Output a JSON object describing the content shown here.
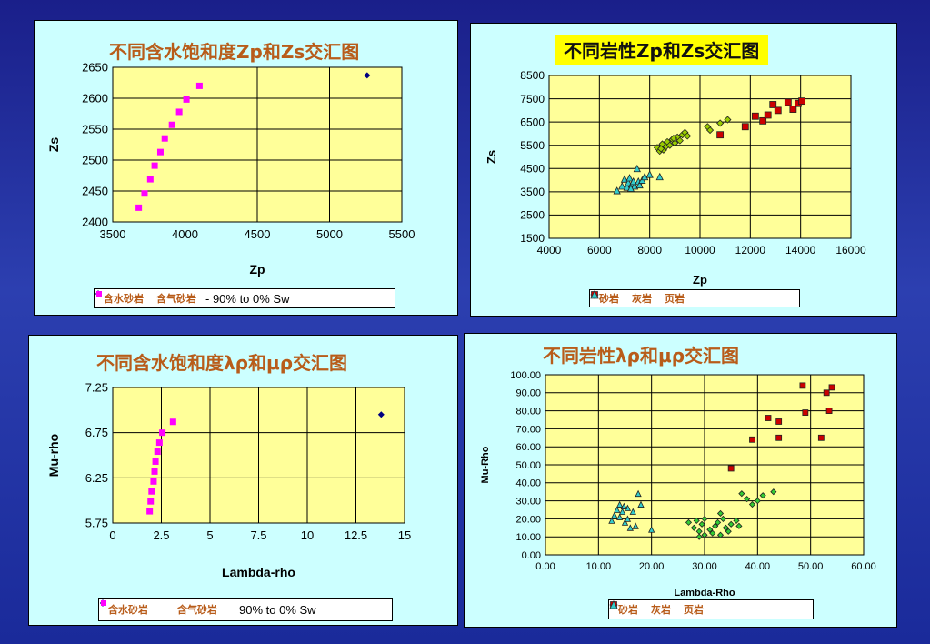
{
  "chart_data": [
    {
      "id": "p1",
      "type": "scatter",
      "title": "不同含水饱和度Zp和Zs交汇图",
      "xlabel": "Zp",
      "ylabel": "Zs",
      "xlim": [
        3500,
        5500
      ],
      "ylim": [
        2400,
        2650
      ],
      "xticks": [
        3500,
        4000,
        4500,
        5000,
        5500
      ],
      "yticks": [
        2400,
        2450,
        2500,
        2550,
        2600,
        2650
      ],
      "series": [
        {
          "name": "含水砂岩",
          "marker": "diamond",
          "color": "#000080",
          "points": [
            [
              5260,
              2637
            ]
          ]
        },
        {
          "name": "含气砂岩",
          "marker": "square",
          "color": "#ff00ff",
          "points": [
            [
              3680,
              2423
            ],
            [
              3720,
              2446
            ],
            [
              3760,
              2469
            ],
            [
              3790,
              2491
            ],
            [
              3830,
              2513
            ],
            [
              3860,
              2535
            ],
            [
              3910,
              2557
            ],
            [
              3960,
              2578
            ],
            [
              4010,
              2598
            ],
            [
              4100,
              2620
            ]
          ]
        }
      ],
      "legend_note": "- 90% to 0% Sw"
    },
    {
      "id": "p2",
      "type": "scatter",
      "title": "不同岩性Zp和Zs交汇图",
      "xlabel": "Zp",
      "ylabel": "Zs",
      "xlim": [
        4000,
        16000
      ],
      "ylim": [
        1500,
        8500
      ],
      "xticks": [
        4000,
        6000,
        8000,
        10000,
        12000,
        14000,
        16000
      ],
      "yticks": [
        1500,
        2500,
        3500,
        4500,
        5500,
        6500,
        7500,
        8500
      ],
      "series": [
        {
          "name": "砂岩",
          "marker": "diamond",
          "color": "#99cc00",
          "points": [
            [
              8300,
              5400
            ],
            [
              8400,
              5250
            ],
            [
              8500,
              5550
            ],
            [
              8550,
              5300
            ],
            [
              8650,
              5450
            ],
            [
              8700,
              5650
            ],
            [
              8800,
              5500
            ],
            [
              8900,
              5750
            ],
            [
              9000,
              5600
            ],
            [
              9100,
              5850
            ],
            [
              9200,
              5700
            ],
            [
              9300,
              5950
            ],
            [
              9400,
              6050
            ],
            [
              9500,
              5900
            ],
            [
              10300,
              6300
            ],
            [
              10400,
              6150
            ],
            [
              10800,
              6450
            ],
            [
              11100,
              6600
            ],
            [
              8450,
              5350
            ],
            [
              8950,
              5800
            ]
          ]
        },
        {
          "name": "灰岩",
          "marker": "square",
          "color": "#cc0000",
          "points": [
            [
              10800,
              5950
            ],
            [
              11800,
              6300
            ],
            [
              12200,
              6750
            ],
            [
              12500,
              6550
            ],
            [
              12700,
              6800
            ],
            [
              12900,
              7250
            ],
            [
              13100,
              7000
            ],
            [
              13500,
              7350
            ],
            [
              13700,
              7050
            ],
            [
              13900,
              7300
            ],
            [
              14050,
              7400
            ]
          ]
        },
        {
          "name": "页岩",
          "marker": "triangle",
          "color": "#33cccc",
          "points": [
            [
              6700,
              3550
            ],
            [
              6900,
              3750
            ],
            [
              7000,
              4050
            ],
            [
              7100,
              3700
            ],
            [
              7150,
              3900
            ],
            [
              7200,
              4100
            ],
            [
              7300,
              3850
            ],
            [
              7400,
              3750
            ],
            [
              7500,
              4500
            ],
            [
              7550,
              3950
            ],
            [
              7600,
              3800
            ],
            [
              7700,
              4000
            ],
            [
              7800,
              4150
            ],
            [
              8000,
              4250
            ],
            [
              8400,
              4150
            ],
            [
              7250,
              3650
            ],
            [
              7350,
              3950
            ]
          ]
        }
      ]
    },
    {
      "id": "p3",
      "type": "scatter",
      "title": "不同含水饱和度λρ和μρ交汇图",
      "xlabel": "Lambda-rho",
      "ylabel": "Mu-rho",
      "xlim": [
        0,
        15
      ],
      "ylim": [
        5.75,
        7.25
      ],
      "xticks": [
        0,
        2.5,
        5,
        7.5,
        10,
        12.5,
        15
      ],
      "yticks": [
        5.75,
        6.25,
        6.75,
        7.25
      ],
      "xtick_labels": [
        "0",
        "2.5",
        "5",
        "7.5",
        "10",
        "12.5",
        "15"
      ],
      "ytick_labels": [
        "5.75",
        "6.25",
        "6.75",
        "7.25"
      ],
      "series": [
        {
          "name": "含水砂岩",
          "marker": "diamond",
          "color": "#000080",
          "points": [
            [
              13.8,
              6.95
            ]
          ]
        },
        {
          "name": "含气砂岩",
          "marker": "square",
          "color": "#ff00ff",
          "points": [
            [
              1.9,
              5.88
            ],
            [
              1.95,
              5.99
            ],
            [
              2.0,
              6.1
            ],
            [
              2.1,
              6.21
            ],
            [
              2.15,
              6.32
            ],
            [
              2.2,
              6.43
            ],
            [
              2.3,
              6.54
            ],
            [
              2.4,
              6.64
            ],
            [
              2.55,
              6.75
            ],
            [
              3.1,
              6.87
            ]
          ]
        }
      ],
      "legend_note": "90% to 0% Sw"
    },
    {
      "id": "p4",
      "type": "scatter",
      "title": "不同岩性λρ和μρ交汇图",
      "xlabel": "Lambda-Rho",
      "ylabel": "Mu-Rho",
      "xlim": [
        0,
        60
      ],
      "ylim": [
        0,
        100
      ],
      "xticks": [
        0,
        10,
        20,
        30,
        40,
        50,
        60
      ],
      "yticks": [
        0,
        10,
        20,
        30,
        40,
        50,
        60,
        70,
        80,
        90,
        100
      ],
      "xtick_labels": [
        "0.00",
        "10.00",
        "20.00",
        "30.00",
        "40.00",
        "50.00",
        "60.00"
      ],
      "ytick_labels": [
        "0.00",
        "10.00",
        "20.00",
        "30.00",
        "40.00",
        "50.00",
        "60.00",
        "70.00",
        "80.00",
        "90.00",
        "100.00"
      ],
      "series": [
        {
          "name": "砂岩",
          "marker": "diamond",
          "color": "#33cc33",
          "points": [
            [
              27,
              18
            ],
            [
              28,
              15
            ],
            [
              28.5,
              19
            ],
            [
              29,
              13
            ],
            [
              29.5,
              17
            ],
            [
              30,
              20
            ],
            [
              30,
              11
            ],
            [
              31,
              14
            ],
            [
              31.5,
              12
            ],
            [
              32,
              16
            ],
            [
              32.5,
              18
            ],
            [
              33,
              11
            ],
            [
              33.5,
              20
            ],
            [
              34,
              15
            ],
            [
              34.5,
              13
            ],
            [
              35,
              17
            ],
            [
              36,
              19
            ],
            [
              36.5,
              16
            ],
            [
              37,
              34
            ],
            [
              38,
              31
            ],
            [
              39,
              28
            ],
            [
              40,
              30
            ],
            [
              41,
              33
            ],
            [
              43,
              35
            ],
            [
              29,
              10
            ],
            [
              33,
              23
            ]
          ]
        },
        {
          "name": "灰岩",
          "marker": "square",
          "color": "#cc0000",
          "points": [
            [
              35,
              48
            ],
            [
              39,
              64
            ],
            [
              42,
              76
            ],
            [
              44,
              74
            ],
            [
              44,
              65
            ],
            [
              48.5,
              94
            ],
            [
              49,
              79
            ],
            [
              52,
              65
            ],
            [
              53,
              90
            ],
            [
              53.5,
              80
            ],
            [
              54,
              93
            ]
          ]
        },
        {
          "name": "页岩",
          "marker": "triangle",
          "color": "#33cccc",
          "points": [
            [
              12.5,
              19
            ],
            [
              13,
              22
            ],
            [
              13.5,
              25
            ],
            [
              14,
              28
            ],
            [
              14,
              21
            ],
            [
              14.5,
              24
            ],
            [
              15,
              18
            ],
            [
              15.5,
              20
            ],
            [
              15.5,
              26
            ],
            [
              16,
              15
            ],
            [
              16.5,
              24
            ],
            [
              17,
              16
            ],
            [
              17.5,
              34
            ],
            [
              18,
              28
            ],
            [
              20,
              14
            ],
            [
              14.8,
              27
            ]
          ]
        }
      ]
    }
  ],
  "legends": {
    "p1": [
      {
        "label": "含水砂岩"
      },
      {
        "label": "含气砂岩"
      }
    ],
    "p2": [
      {
        "label": "砂岩"
      },
      {
        "label": "灰岩"
      },
      {
        "label": "页岩"
      }
    ],
    "p3": [
      {
        "label": "含水砂岩"
      },
      {
        "label": "含气砂岩"
      }
    ],
    "p4": [
      {
        "label": "砂岩"
      },
      {
        "label": "灰岩"
      },
      {
        "label": "页岩"
      }
    ]
  }
}
